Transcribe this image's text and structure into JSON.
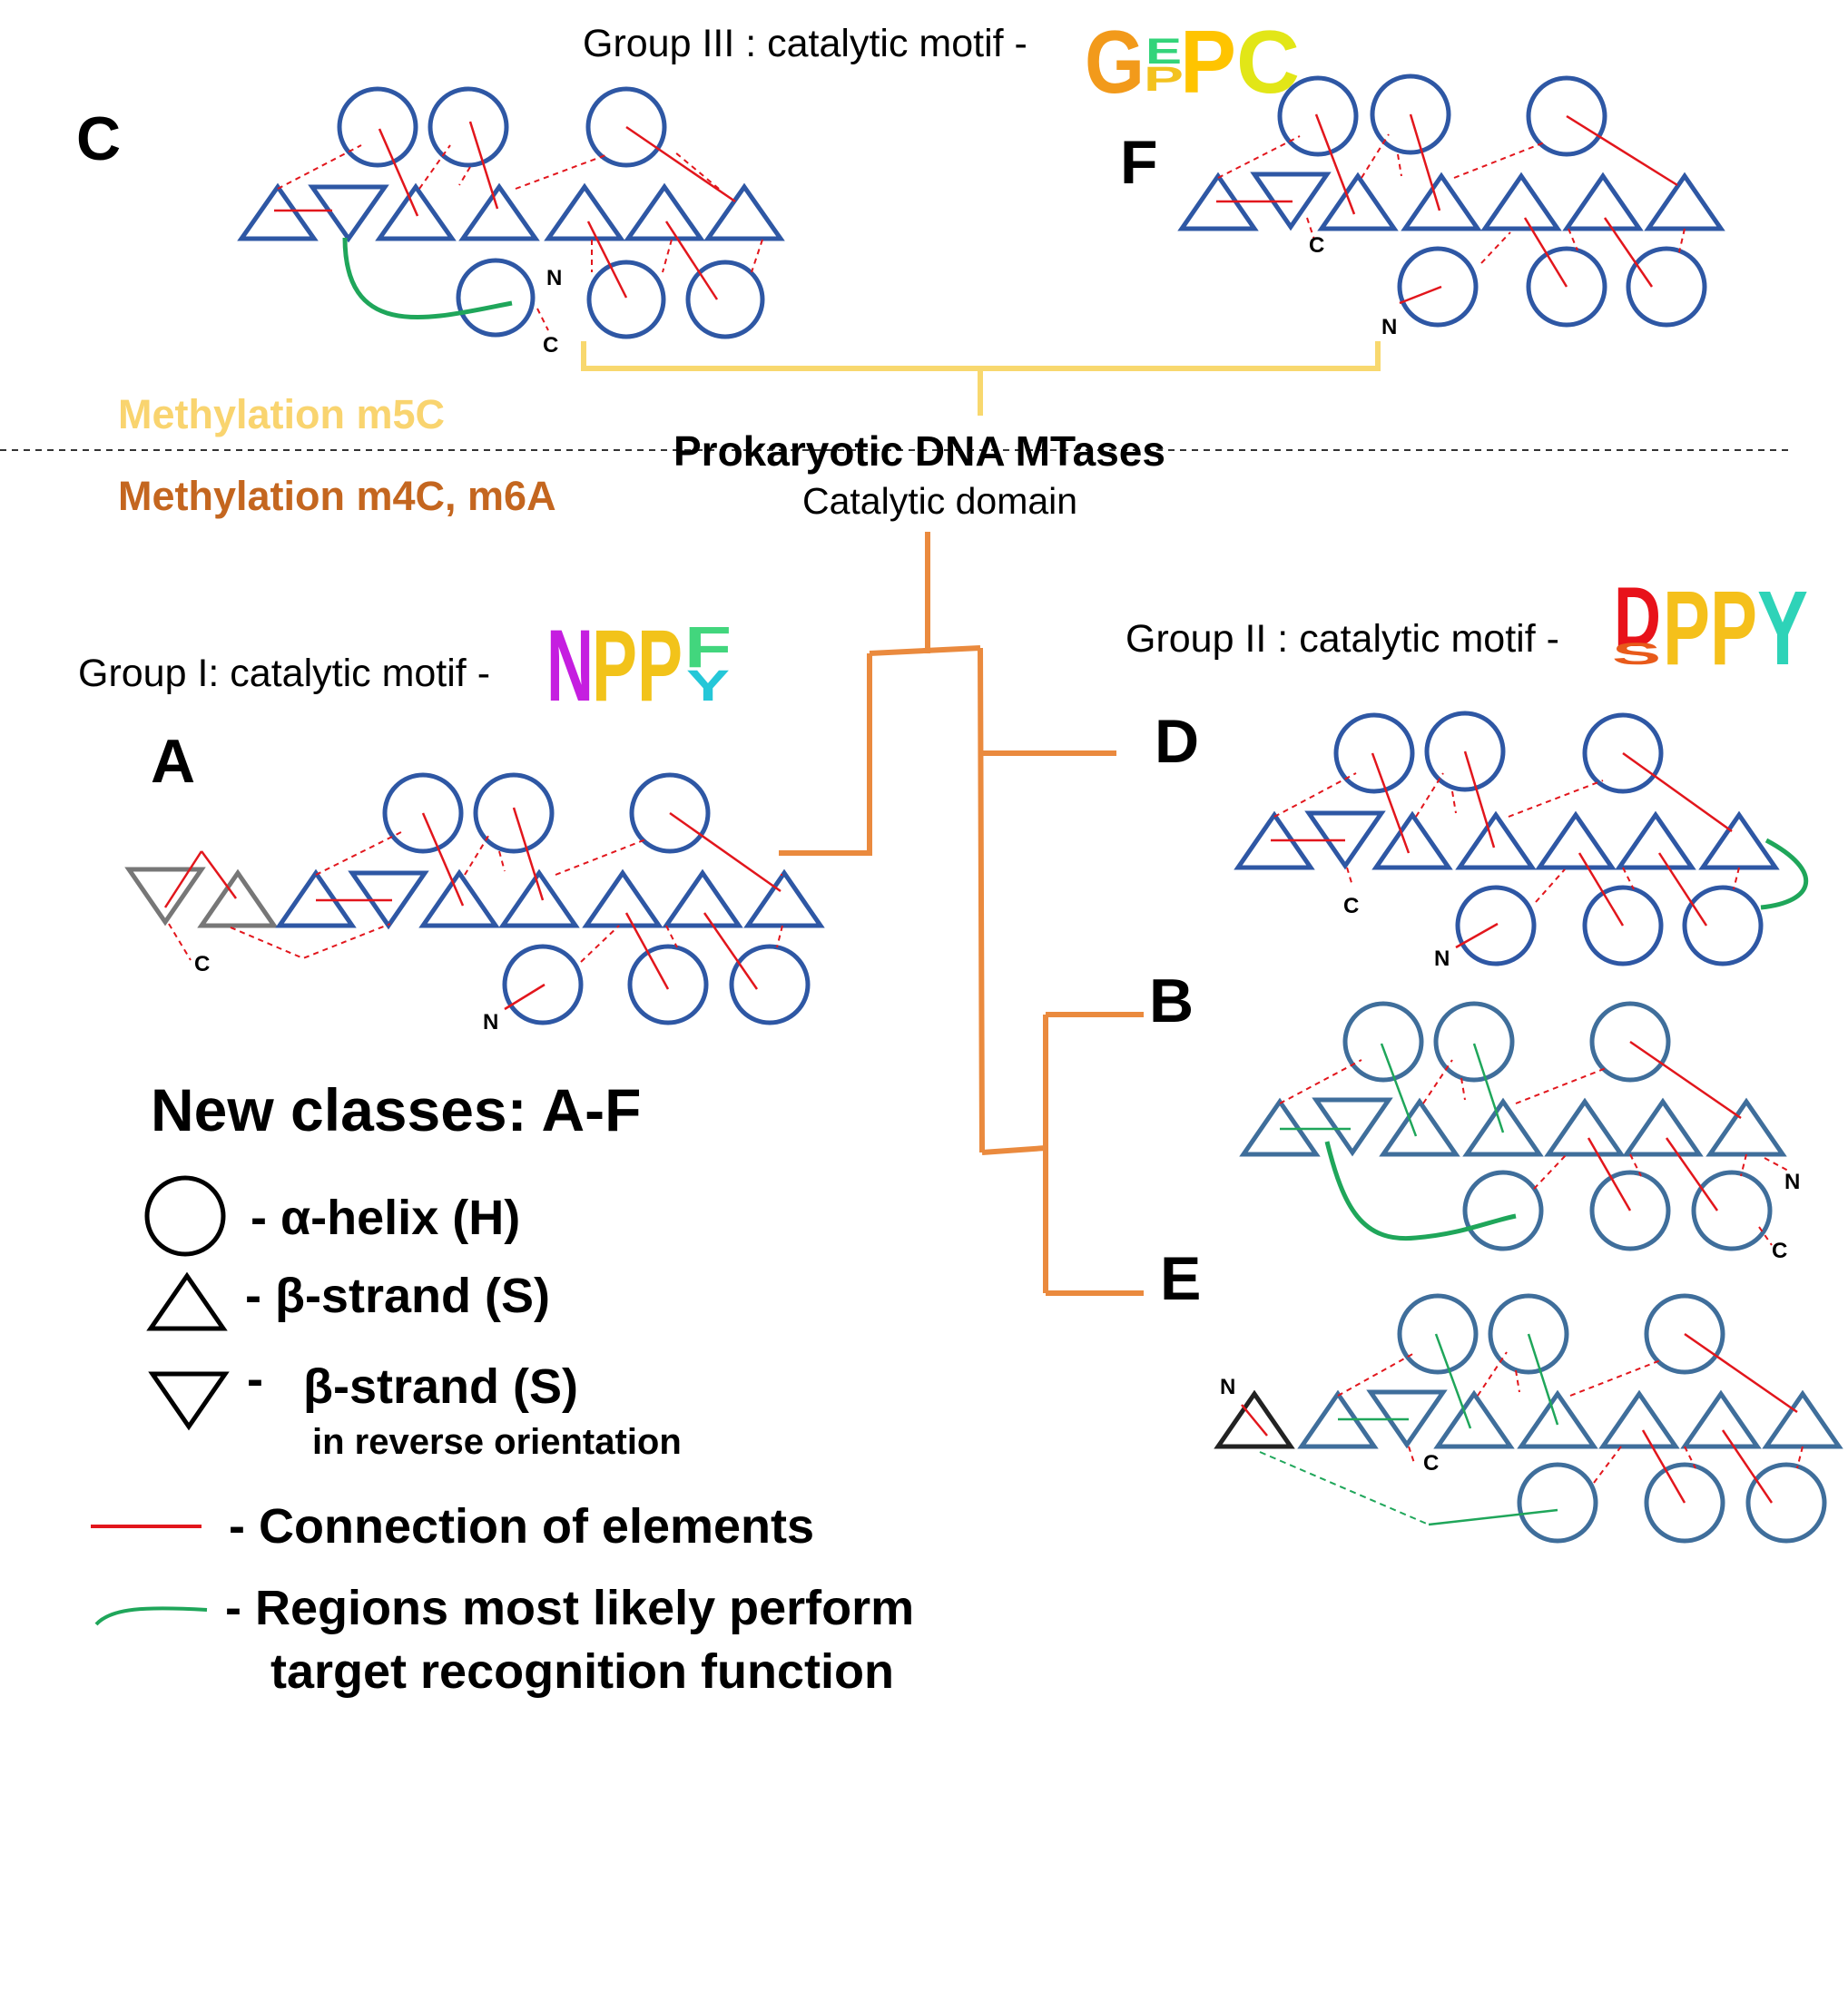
{
  "header": {
    "group3_label": "Group III : catalytic motif -",
    "group3_motif": "GPPC",
    "group1_label": "Group I: catalytic motif -",
    "group1_motif": "NPPF",
    "group2_label": "Group II : catalytic motif -",
    "group2_motif": "DPPY"
  },
  "tree": {
    "root_title": "Prokaryotic DNA MTases",
    "root_subtitle": "Catalytic domain",
    "methylation_m5c": "Methylation m5C",
    "methylation_m4c_m6a": "Methylation m4C, m6A"
  },
  "classes": {
    "A": "A",
    "B": "B",
    "C": "C",
    "D": "D",
    "E": "E",
    "F": "F"
  },
  "termini": {
    "n": "N",
    "c": "C"
  },
  "legend": {
    "title": "New classes: A-F",
    "helix": "- α-helix (H)",
    "strand": "- β-strand (S)",
    "strand_reverse_dash": "-",
    "strand_reverse": "β-strand (S)",
    "strand_reverse_note": "in reverse orientation",
    "connection": "- Connection of elements",
    "recognition_line1": "- Regions most likely perform",
    "recognition_line2": "target recognition function"
  },
  "colors": {
    "blue": "#2e57a4",
    "steel": "#3f6e9b",
    "red": "#e2161c",
    "green": "#1fa65a",
    "orange": "#ea8a3e",
    "yellow": "#f8d86e",
    "gray": "#777777",
    "m5c": "#f9d46f",
    "m4c": "#c4661f"
  }
}
